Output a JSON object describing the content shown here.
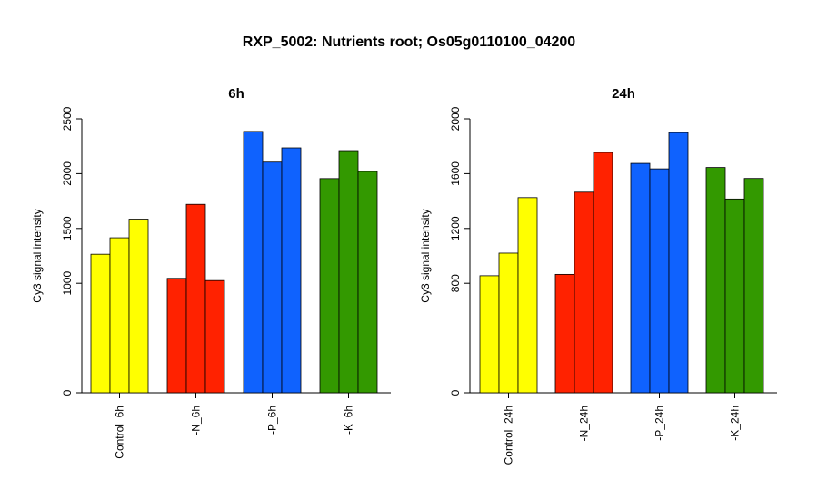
{
  "page_title": "RXP_5002: Nutrients root; Os05g0110100_04200",
  "chart_data": [
    {
      "type": "bar",
      "title": "6h",
      "ylabel": "Cy3 signal intensity",
      "xlabel": "",
      "categories": [
        "Control_6h",
        "-N_6h",
        "-P_6h",
        "-K_6h"
      ],
      "group_colors": [
        "#FFFF00",
        "#FF2200",
        "#0F62FE",
        "#339900"
      ],
      "values": [
        [
          1265,
          1415,
          1585
        ],
        [
          1045,
          1720,
          1025
        ],
        [
          2385,
          2105,
          2235
        ],
        [
          1955,
          2210,
          2020
        ]
      ],
      "ylim": [
        0,
        2500
      ],
      "y_ticks": [
        0,
        1000,
        1500,
        2000,
        2500
      ],
      "grid": false,
      "legend": "none"
    },
    {
      "type": "bar",
      "title": "24h",
      "ylabel": "Cy3 signal intensity",
      "xlabel": "",
      "categories": [
        "Control_24h",
        "-N_24h",
        "-P_24h",
        "-K_24h"
      ],
      "group_colors": [
        "#FFFF00",
        "#FF2200",
        "#0F62FE",
        "#339900"
      ],
      "values": [
        [
          855,
          1020,
          1425
        ],
        [
          865,
          1465,
          1755
        ],
        [
          1675,
          1635,
          1900
        ],
        [
          1645,
          1415,
          1565
        ]
      ],
      "ylim": [
        0,
        2000
      ],
      "y_ticks": [
        0,
        800,
        1200,
        1600,
        2000
      ],
      "grid": false,
      "legend": "none"
    }
  ]
}
